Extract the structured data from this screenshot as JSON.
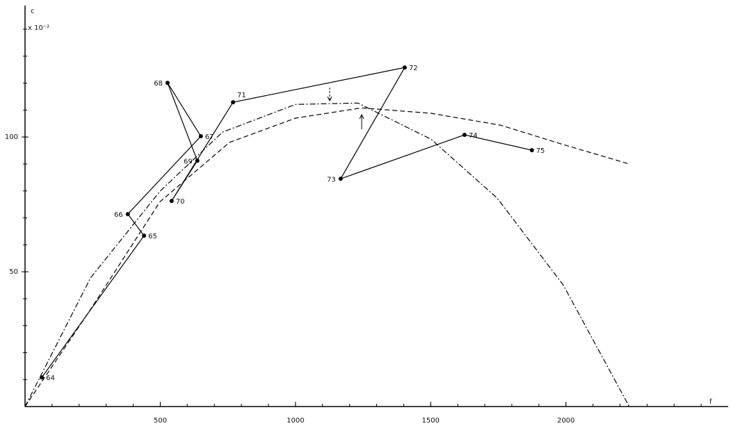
{
  "chart_data": {
    "type": "line",
    "y_label": "c",
    "y_unit": "x 10⁻²",
    "x_label": "f",
    "xlim": [
      0,
      2600
    ],
    "ylim": [
      0,
      148
    ],
    "xticks": [
      500,
      1000,
      1500,
      2000
    ],
    "yticks": [
      50,
      100
    ],
    "x_minor_ticks": [
      100,
      200,
      300,
      400,
      500,
      600,
      700,
      800,
      900,
      1000,
      1100,
      1200,
      1300,
      1400,
      1500,
      1600,
      1700,
      1800,
      1900,
      2000,
      2100,
      2200,
      2300,
      2400,
      2500
    ],
    "y_minor_ticks": [
      10,
      20,
      30,
      40,
      50,
      60,
      70,
      80,
      90,
      100,
      110,
      120,
      130,
      140
    ],
    "series": [
      {
        "style": "solid-markers",
        "color": "#000000",
        "x": [
          62,
          440,
          380,
          650,
          527,
          637,
          542,
          769,
          1404,
          1167,
          1625,
          1874
        ],
        "values": [
          10.8,
          63.4,
          71.4,
          100.3,
          120.1,
          91.2,
          76.3,
          112.9,
          125.8,
          84.5,
          100.8,
          95.1
        ],
        "point_labels": [
          "64",
          "65",
          "66",
          "67",
          "68",
          "69",
          "70",
          "71",
          "72",
          "73",
          "74",
          "75"
        ]
      },
      {
        "style": "dashed",
        "color": "#000000",
        "x": [
          0,
          242,
          499,
          756,
          1000,
          1244,
          1501,
          1758,
          1990,
          2234
        ],
        "values": [
          0,
          36,
          76,
          98,
          107,
          110.8,
          108.8,
          104.4,
          97.2,
          90
        ]
      },
      {
        "style": "dash-dot",
        "color": "#000000",
        "x": [
          0,
          242,
          499,
          730,
          1000,
          1231,
          1501,
          1746,
          1990,
          2234
        ],
        "values": [
          0,
          47.7,
          79.9,
          101.8,
          112.1,
          112.6,
          99.2,
          77.3,
          45.1,
          0
        ]
      }
    ]
  }
}
